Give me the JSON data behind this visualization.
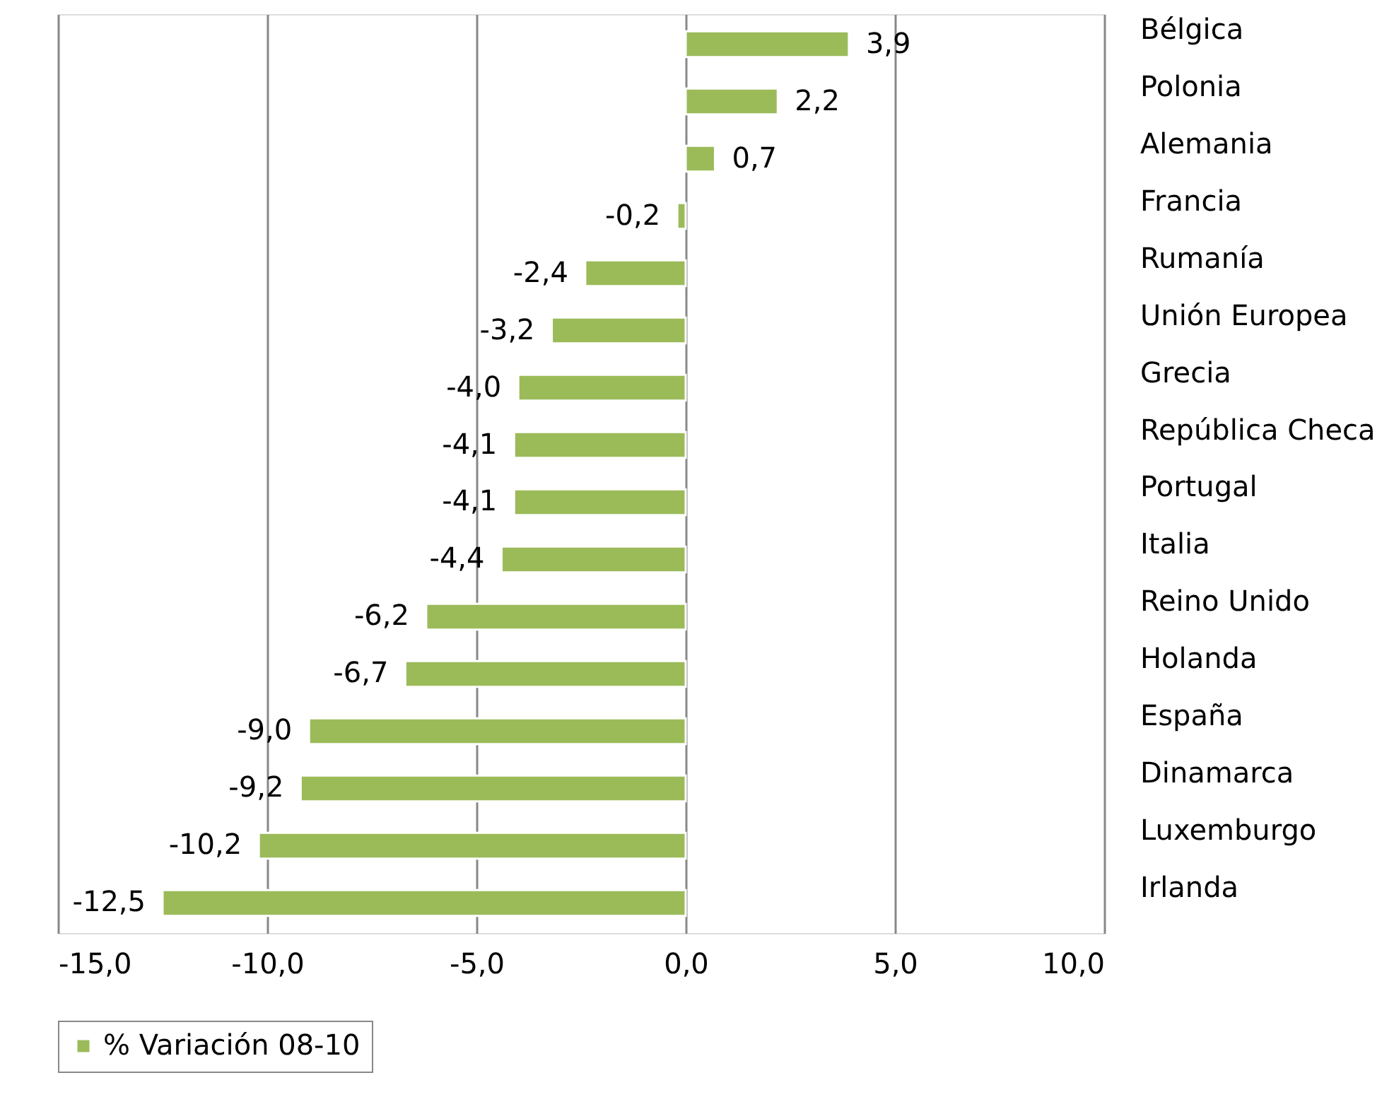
{
  "chart_data": {
    "type": "bar",
    "orientation": "horizontal",
    "categories": [
      "Bélgica",
      "Polonia",
      "Alemania",
      "Francia",
      "Rumanía",
      "Unión Europea",
      "Grecia",
      "República Checa",
      "Portugal",
      "Italia",
      "Reino Unido",
      "Holanda",
      "España",
      "Dinamarca",
      "Luxemburgo",
      "Irlanda"
    ],
    "series": [
      {
        "name": "% Variación 08-10",
        "color": "#9bbb59",
        "values": [
          3.9,
          2.2,
          0.7,
          -0.2,
          -2.4,
          -3.2,
          -4.0,
          -4.1,
          -4.1,
          -4.4,
          -6.2,
          -6.7,
          -9.0,
          -9.2,
          -10.2,
          -12.5
        ],
        "value_labels": [
          "3,9",
          "2,2",
          "0,7",
          "-0,2",
          "-2,4",
          "-3,2",
          "-4,0",
          "-4,1",
          "-4,1",
          "-4,4",
          "-6,2",
          "-6,7",
          "-9,0",
          "-9,2",
          "-10,2",
          "-12,5"
        ]
      }
    ],
    "xlim": [
      -15,
      10
    ],
    "xticks": [
      {
        "value": -15,
        "label": "-15,0"
      },
      {
        "value": -10,
        "label": "-10,0"
      },
      {
        "value": -5,
        "label": "-5,0"
      },
      {
        "value": 0,
        "label": "0,0"
      },
      {
        "value": 5,
        "label": "5,0"
      },
      {
        "value": 10,
        "label": "10,0"
      }
    ],
    "grid": "x",
    "legend": "bottom"
  }
}
